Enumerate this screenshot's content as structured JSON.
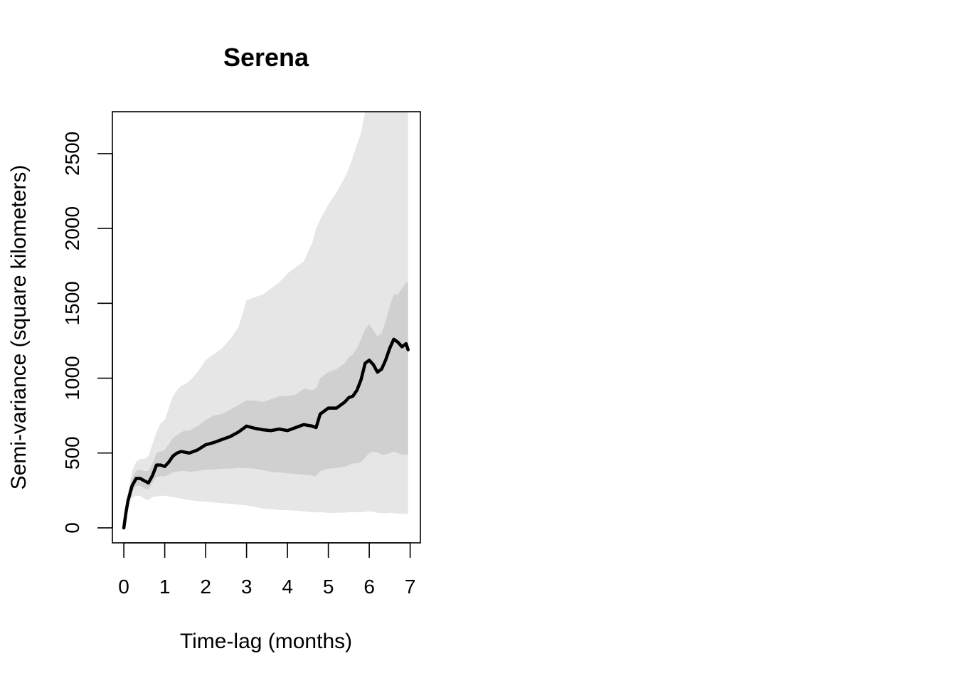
{
  "chart_data": {
    "type": "area",
    "title": "Serena",
    "xlabel": "Time-lag (months)",
    "ylabel": "Semi-variance (square kilometers)",
    "xlim": [
      -0.28,
      7.25
    ],
    "ylim": [
      -100,
      2780
    ],
    "xticks": [
      "0",
      "1",
      "2",
      "3",
      "4",
      "5",
      "6",
      "7"
    ],
    "yticks": [
      "0",
      "500",
      "1000",
      "1500",
      "2000",
      "2500"
    ],
    "grid": false,
    "legend": "none",
    "colors": {
      "outer_band": "#e6e6e6",
      "inner_band": "#d0d0d0",
      "line": "#000000",
      "axis": "#000000"
    },
    "x": [
      0,
      0.05,
      0.1,
      0.2,
      0.3,
      0.4,
      0.5,
      0.6,
      0.7,
      0.8,
      0.9,
      1.0,
      1.1,
      1.2,
      1.3,
      1.4,
      1.5,
      1.6,
      1.8,
      2.0,
      2.2,
      2.4,
      2.6,
      2.8,
      3.0,
      3.2,
      3.4,
      3.6,
      3.8,
      4.0,
      4.2,
      4.4,
      4.6,
      4.7,
      4.8,
      5.0,
      5.2,
      5.4,
      5.5,
      5.6,
      5.7,
      5.8,
      5.9,
      6.0,
      6.1,
      6.2,
      6.3,
      6.4,
      6.5,
      6.6,
      6.7,
      6.8,
      6.9,
      6.95
    ],
    "series": [
      {
        "role": "estimate",
        "values": [
          0,
          100,
          180,
          280,
          330,
          330,
          315,
          300,
          350,
          420,
          420,
          410,
          440,
          480,
          500,
          510,
          505,
          500,
          520,
          555,
          570,
          590,
          610,
          640,
          680,
          665,
          655,
          650,
          660,
          650,
          670,
          690,
          680,
          670,
          760,
          800,
          800,
          840,
          870,
          880,
          920,
          990,
          1100,
          1120,
          1090,
          1040,
          1060,
          1120,
          1200,
          1260,
          1240,
          1210,
          1230,
          1190
        ]
      },
      {
        "role": "inner_upper",
        "values": [
          0,
          110,
          200,
          330,
          380,
          390,
          380,
          380,
          430,
          500,
          510,
          520,
          560,
          600,
          620,
          640,
          650,
          650,
          680,
          720,
          750,
          760,
          790,
          820,
          850,
          850,
          840,
          860,
          880,
          880,
          890,
          930,
          920,
          930,
          1000,
          1040,
          1060,
          1100,
          1140,
          1160,
          1200,
          1260,
          1330,
          1360,
          1320,
          1280,
          1300,
          1380,
          1480,
          1560,
          1560,
          1600,
          1640,
          1640
        ]
      },
      {
        "role": "inner_lower",
        "values": [
          0,
          90,
          165,
          240,
          280,
          280,
          265,
          255,
          300,
          340,
          345,
          345,
          355,
          370,
          375,
          380,
          380,
          375,
          380,
          390,
          390,
          395,
          395,
          400,
          400,
          395,
          385,
          375,
          370,
          365,
          360,
          355,
          350,
          345,
          380,
          395,
          400,
          410,
          420,
          430,
          430,
          440,
          470,
          500,
          510,
          505,
          490,
          490,
          500,
          510,
          500,
          490,
          490,
          490
        ]
      },
      {
        "role": "outer_upper",
        "values": [
          0,
          120,
          240,
          380,
          440,
          460,
          460,
          480,
          560,
          640,
          700,
          720,
          800,
          880,
          920,
          950,
          960,
          980,
          1040,
          1120,
          1160,
          1200,
          1260,
          1340,
          1520,
          1540,
          1560,
          1600,
          1640,
          1700,
          1740,
          1780,
          1900,
          2000,
          2060,
          2160,
          2240,
          2340,
          2400,
          2480,
          2560,
          2640,
          2780,
          2780,
          2780,
          2780,
          2780,
          2780,
          2780,
          2780,
          2780,
          2780,
          2780,
          2780
        ]
      },
      {
        "role": "outer_lower",
        "values": [
          0,
          85,
          150,
          200,
          215,
          215,
          195,
          185,
          205,
          210,
          215,
          215,
          210,
          205,
          200,
          195,
          190,
          185,
          180,
          175,
          170,
          165,
          160,
          155,
          150,
          140,
          130,
          125,
          120,
          118,
          115,
          110,
          105,
          103,
          105,
          100,
          100,
          102,
          105,
          106,
          105,
          104,
          108,
          110,
          108,
          100,
          98,
          97,
          100,
          98,
          96,
          95,
          92,
          92
        ]
      }
    ]
  }
}
